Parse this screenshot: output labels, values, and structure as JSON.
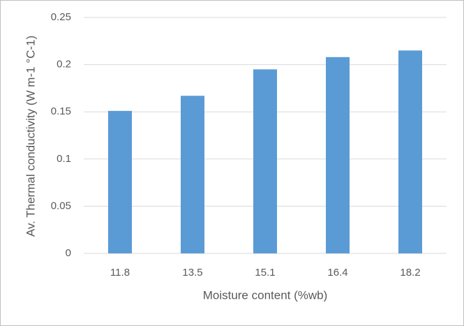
{
  "chart_data": {
    "type": "bar",
    "x_label": "Moisture content (%wb)",
    "y_label": "Av. Thermal conductivity (W m-1 °C-1)",
    "categories": [
      "11.8",
      "13.5",
      "15.1",
      "16.4",
      "18.2"
    ],
    "values": [
      0.151,
      0.167,
      0.195,
      0.208,
      0.215
    ],
    "color": "#5b9bd5",
    "ylim": [
      0,
      0.25
    ],
    "yticks": [
      0,
      0.05,
      0.1,
      0.15,
      0.2,
      0.25
    ],
    "grid": true
  }
}
